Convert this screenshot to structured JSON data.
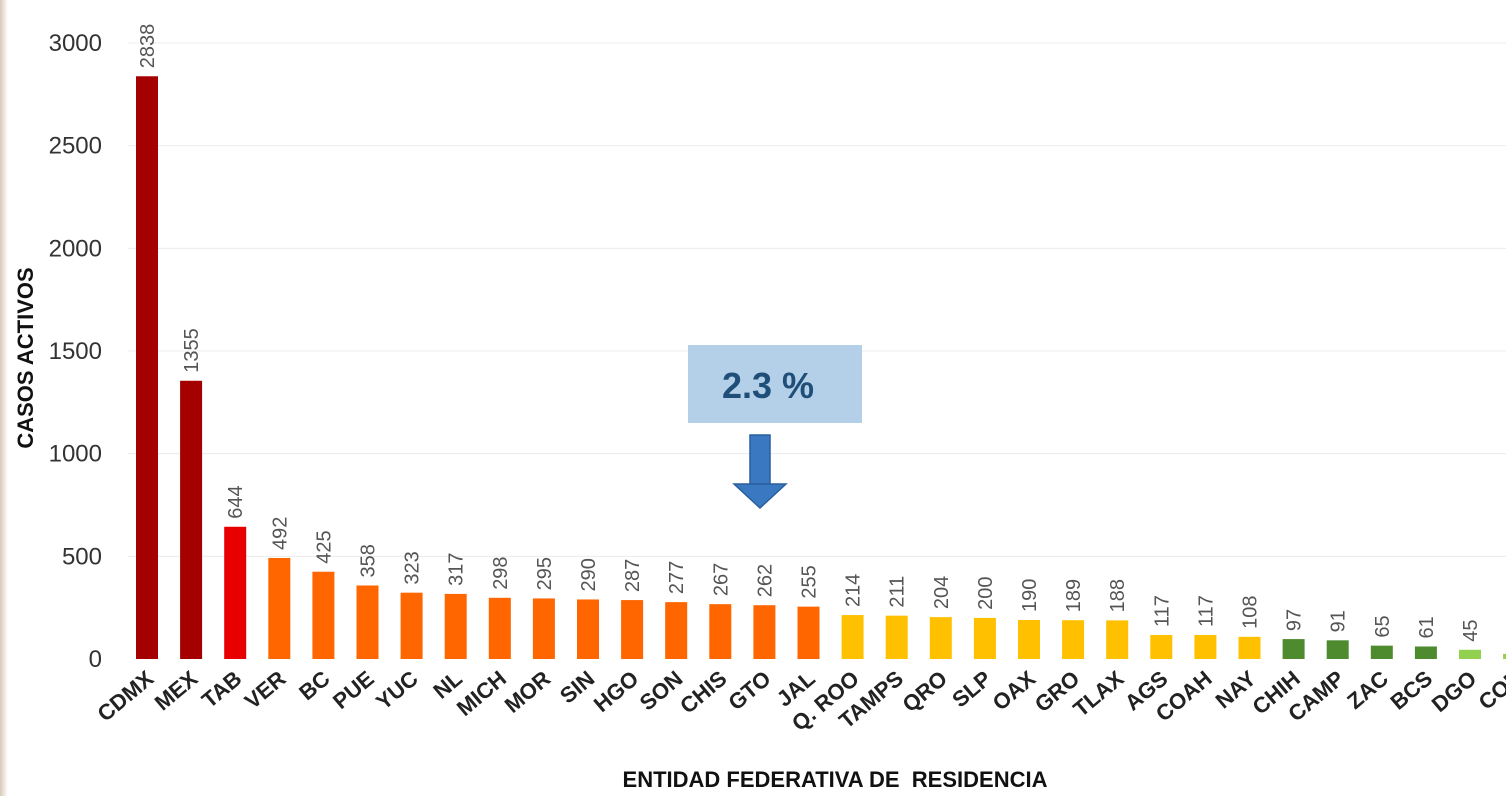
{
  "chart_data": {
    "type": "bar",
    "xlabel": "ENTIDAD FEDERATIVA DE  RESIDENCIA",
    "ylabel": "CASOS ACTIVOS",
    "ylim": [
      0,
      3000
    ],
    "yticks": [
      0,
      500,
      1000,
      1500,
      2000,
      2500,
      3000
    ],
    "grid": true,
    "categories": [
      "CDMX",
      "MEX",
      "TAB",
      "VER",
      "BC",
      "PUE",
      "YUC",
      "NL",
      "MICH",
      "MOR",
      "SIN",
      "HGO",
      "SON",
      "CHIS",
      "GTO",
      "JAL",
      "Q. ROO",
      "TAMPS",
      "QRO",
      "SLP",
      "OAX",
      "GRO",
      "TLAX",
      "AGS",
      "COAH",
      "NAY",
      "CHIH",
      "CAMP",
      "ZAC",
      "BCS",
      "DGO",
      "COL"
    ],
    "values": [
      2838,
      1355,
      644,
      492,
      425,
      358,
      323,
      317,
      298,
      295,
      290,
      287,
      277,
      267,
      262,
      255,
      214,
      211,
      204,
      200,
      190,
      189,
      188,
      117,
      117,
      108,
      97,
      91,
      65,
      61,
      45,
      25
    ],
    "colors": [
      "#a50000",
      "#a50000",
      "#e80000",
      "#ff6600",
      "#ff6600",
      "#ff6600",
      "#ff6600",
      "#ff6600",
      "#ff6600",
      "#ff6600",
      "#ff6600",
      "#ff6600",
      "#ff6600",
      "#ff6600",
      "#ff6600",
      "#ff6600",
      "#ffc000",
      "#ffc000",
      "#ffc000",
      "#ffc000",
      "#ffc000",
      "#ffc000",
      "#ffc000",
      "#ffc000",
      "#ffc000",
      "#ffc000",
      "#4e8a2e",
      "#4e8a2e",
      "#4e8a2e",
      "#4e8a2e",
      "#92d050",
      "#92d050"
    ],
    "annotation": {
      "text": "2.3 %",
      "target_category": "GTO",
      "box_color": "#b4cfe8",
      "text_color": "#1f4e79",
      "arrow_color": "#3a78c2"
    }
  }
}
